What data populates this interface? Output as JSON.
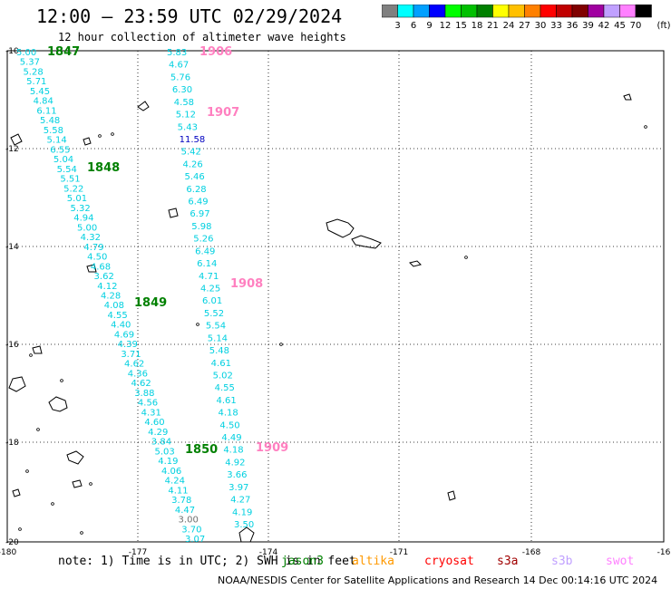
{
  "header": {
    "title": "12:00 — 23:59 UTC 02/29/2024",
    "subtitle": "12 hour collection of altimeter wave heights"
  },
  "colorbar": {
    "colors": [
      "#808080",
      "#00ffff",
      "#00a0ff",
      "#0000ff",
      "#00ff00",
      "#00c000",
      "#008000",
      "#ffff00",
      "#ffc000",
      "#ff8000",
      "#ff0000",
      "#c00000",
      "#800000",
      "#a000a0",
      "#c0a0ff",
      "#ff80ff",
      "#000000"
    ],
    "labels": [
      "3",
      "6",
      "9",
      "12",
      "15",
      "18",
      "21",
      "24",
      "27",
      "30",
      "33",
      "36",
      "39",
      "42",
      "45",
      "70"
    ],
    "unit": "(ft)"
  },
  "axes": {
    "lon_labels": [
      "-180",
      "-177",
      "-174",
      "-171",
      "-168",
      "-16"
    ],
    "lat_labels": [
      "-10",
      "-12",
      "-14",
      "-16",
      "-18",
      "-20"
    ]
  },
  "tracks": [
    {
      "pass": "1847",
      "pass_color": "#008000",
      "color": "#00d0e0",
      "values": [
        "5.00",
        "5.37",
        "5.28",
        "5.71",
        "5.45",
        "4.84",
        "6.11",
        "5.48",
        "5.58",
        "5.14",
        "6.55",
        "5.04",
        "5.54",
        "5.51",
        "5.22",
        "5.01",
        "5.32",
        "4.94",
        "5.00",
        "4.32",
        "4.79",
        "4.50",
        "4.68",
        "3.62",
        "4.12",
        "4.28",
        "4.08",
        "4.55",
        "4.40",
        "4.69",
        "4.39",
        "3.71",
        "4.62",
        "4.36",
        "4.62",
        "3.88",
        "4.56",
        "4.31",
        "4.60",
        "4.29",
        "3.84",
        "5.03",
        "4.19",
        "4.06",
        "4.24",
        "4.11",
        "3.78",
        "4.47",
        "3.00",
        "3.70",
        "3.07"
      ]
    },
    {
      "pass": "1906",
      "pass_color": "#ff80c0",
      "color": "#00d0e0",
      "values": [
        "5.83",
        "4.67",
        "5.76",
        "6.30",
        "4.58",
        "5.12",
        "5.43",
        "11.58",
        "5.42",
        "4.26",
        "5.46",
        "6.28",
        "6.49",
        "6.97",
        "5.98",
        "5.26",
        "6.49",
        "6.14",
        "4.71",
        "4.25",
        "6.01",
        "5.52",
        "5.54",
        "5.14",
        "5.48",
        "4.61",
        "5.02",
        "4.55",
        "4.61",
        "4.18",
        "4.50",
        "4.49",
        "4.18",
        "4.92",
        "3.66",
        "3.97",
        "4.27",
        "4.19",
        "3.50"
      ]
    }
  ],
  "pass_labels": [
    {
      "text": "1847",
      "color": "#008000"
    },
    {
      "text": "1848",
      "color": "#008000"
    },
    {
      "text": "1849",
      "color": "#008000"
    },
    {
      "text": "1850",
      "color": "#008000"
    },
    {
      "text": "1906",
      "color": "#ff80c0"
    },
    {
      "text": "1907",
      "color": "#ff80c0"
    },
    {
      "text": "1908",
      "color": "#ff80c0"
    },
    {
      "text": "1909",
      "color": "#ff80c0"
    }
  ],
  "note": "note:  1) Time is in UTC; 2) SWH is in feet",
  "legend": [
    {
      "text": "jason3",
      "color": "#008000"
    },
    {
      "text": "altika",
      "color": "#ff9900"
    },
    {
      "text": "cryosat",
      "color": "#ff0000"
    },
    {
      "text": "s3a",
      "color": "#a00000"
    },
    {
      "text": "s3b",
      "color": "#c0a0ff"
    },
    {
      "text": "swot",
      "color": "#ff80ff"
    }
  ],
  "footer": "NOAA/NESDIS Center for Satellite Applications and Research    14 Dec 00:14:16 UTC 2024"
}
